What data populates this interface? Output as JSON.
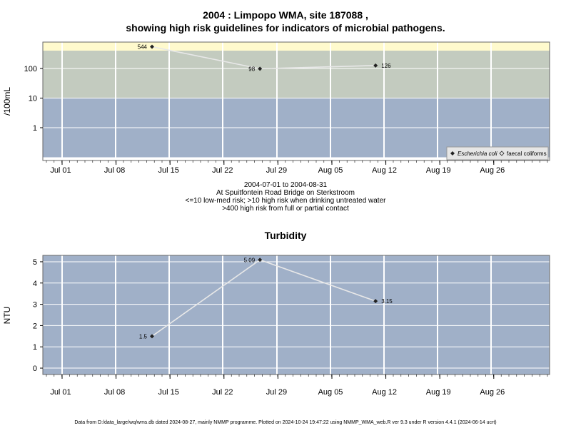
{
  "chart_data": [
    {
      "type": "scatter",
      "title_line1": "2004 : Limpopo WMA, site 187088 ,",
      "title_line2": "showing high risk guidelines for indicators of microbial pathogens.",
      "ylabel": "/100mL",
      "yscale": "log",
      "yticks": [
        "1",
        "10",
        "100"
      ],
      "ytick_values": [
        1,
        10,
        100
      ],
      "xticks": [
        "Jul 01",
        "Jul 08",
        "Jul 15",
        "Jul 22",
        "Jul 29",
        "Aug 05",
        "Aug 12",
        "Aug 19",
        "Aug 26"
      ],
      "bands": [
        {
          "from": 400,
          "to": 1000,
          "color": "#fffacd"
        },
        {
          "from": 10,
          "to": 400,
          "color": "#c3cbbf"
        },
        {
          "from": 0.1,
          "to": 10,
          "color": "#a0b0c8"
        }
      ],
      "series": [
        {
          "name": "Escherichia coli",
          "marker": "filled-diamond",
          "x": [
            "2004-07-13",
            "2004-07-27",
            "2004-08-11"
          ],
          "y": [
            544,
            98,
            126
          ],
          "labels": [
            "544",
            "98",
            "126"
          ]
        },
        {
          "name": "faecal coliforms",
          "marker": "open-diamond",
          "x": [],
          "y": []
        }
      ],
      "legend_position": "bottom-right",
      "sub_lines": [
        "2004-07-01 to 2004-08-31",
        "At Spuitfontein Road Bridge on Sterkstroom",
        "<=10 low-med risk; >10 high risk when drinking untreated water",
        ">400 high risk from full or partial contact"
      ]
    },
    {
      "type": "line",
      "title": "Turbidity",
      "ylabel": "NTU",
      "yticks": [
        "0",
        "1",
        "2",
        "3",
        "4",
        "5"
      ],
      "ylim": [
        -0.3,
        5.3
      ],
      "xticks": [
        "Jul 01",
        "Jul 08",
        "Jul 15",
        "Jul 22",
        "Jul 29",
        "Aug 05",
        "Aug 12",
        "Aug 19",
        "Aug 26"
      ],
      "background": "#a0b0c8",
      "series": [
        {
          "name": "",
          "x": [
            "2004-07-13",
            "2004-07-27",
            "2004-08-11"
          ],
          "y": [
            1.5,
            5.09,
            3.15
          ],
          "labels": [
            "1.5",
            "5.09",
            "3.15"
          ]
        }
      ]
    }
  ],
  "footer": "Data from D:/data_large/wq/wms.db dated 2024-08-27, mainly NMMP programme. Plotted on 2024-10-24 19:47:22 using NMMP_WMA_web.R ver 9.3 under R version 4.4.1 (2024-06-14 ucrt)"
}
